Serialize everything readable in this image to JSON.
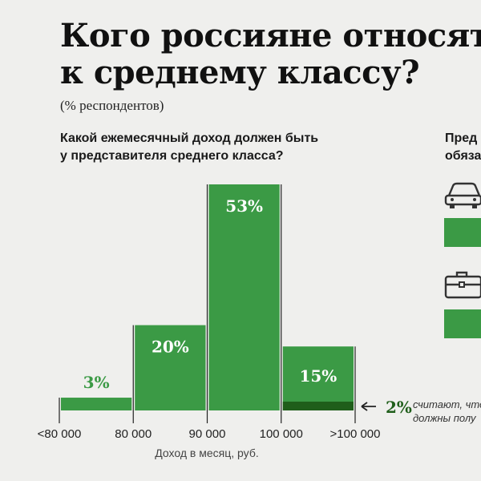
{
  "title_lines": [
    "Кого россияне относят",
    "к среднему классу?"
  ],
  "subtitle": "(% респондентов)",
  "question_lines": [
    "Какой ежемесячный доход должен быть",
    "у представителя среднего класса?"
  ],
  "question2_lines": [
    "Пред",
    "обяза"
  ],
  "note_lines": [
    "считают, что",
    "должны полу"
  ],
  "icons": [
    "car-icon",
    "briefcase-icon"
  ],
  "colors": {
    "bar": "#3b9a45",
    "bar_dark": "#1f5e1a",
    "label_green": "#3b9a45",
    "callout_green": "#1f5e1a"
  },
  "chart_data": {
    "type": "bar",
    "categories": [
      "<80 000",
      "80 000–90 000",
      "90 000–100 000",
      ">100 000"
    ],
    "values": [
      3,
      20,
      53,
      15
    ],
    "value_labels": [
      "3%",
      "20%",
      "53%",
      "15%"
    ],
    "highlight": {
      "category": ">100 000",
      "value": 2,
      "label": "2%"
    },
    "tick_labels": [
      "<80 000",
      "80 000",
      "90 000",
      "100 000",
      ">100 000"
    ],
    "xlabel": "Доход в месяц, руб.",
    "ylim": [
      0,
      53
    ]
  }
}
